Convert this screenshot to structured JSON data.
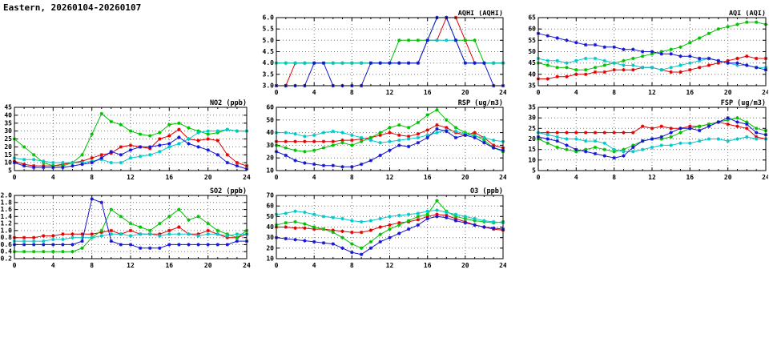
{
  "page_title": "Eastern, 20260104-20260107",
  "colors": {
    "red": "#e10000",
    "green": "#00c000",
    "blue": "#1414d2",
    "cyan": "#00c8c8"
  },
  "chart_data": [
    {
      "id": "aqhi",
      "type": "line",
      "title": "AQHI (AQHI)",
      "xlim": [
        0,
        24
      ],
      "xticks": [
        0,
        4,
        8,
        12,
        16,
        20,
        24
      ],
      "ylim": [
        3.0,
        6.0
      ],
      "yticks": [
        3.0,
        3.5,
        4.0,
        4.5,
        5.0,
        5.5,
        6.0
      ],
      "ytick_labels": [
        "3.0",
        "3.5",
        "4.0",
        "4.5",
        "5.0",
        "5.5",
        "6.0"
      ],
      "series": [
        {
          "name": "red",
          "color": "#e10000",
          "values": [
            3,
            3,
            4,
            4,
            4,
            4,
            4,
            4,
            4,
            4,
            4,
            4,
            4,
            4,
            4,
            4,
            5,
            5,
            6,
            6,
            5,
            4,
            4,
            4,
            4
          ]
        },
        {
          "name": "green",
          "color": "#00c000",
          "values": [
            4,
            4,
            4,
            4,
            4,
            4,
            4,
            4,
            4,
            4,
            4,
            4,
            4,
            5,
            5,
            5,
            5,
            6,
            6,
            5,
            5,
            5,
            4,
            4,
            4
          ]
        },
        {
          "name": "cyan",
          "color": "#00c8c8",
          "values": [
            4,
            4,
            4,
            4,
            4,
            4,
            4,
            4,
            4,
            4,
            4,
            4,
            4,
            4,
            4,
            4,
            5,
            5,
            5,
            5,
            4,
            4,
            4,
            4,
            4
          ]
        },
        {
          "name": "blue",
          "color": "#1414d2",
          "values": [
            3,
            3,
            3,
            3,
            4,
            4,
            3,
            3,
            3,
            3,
            4,
            4,
            4,
            4,
            4,
            4,
            5,
            6,
            6,
            5,
            4,
            4,
            4,
            3,
            3
          ]
        }
      ]
    },
    {
      "id": "aqi",
      "type": "line",
      "title": "AQI (AQI)",
      "xlim": [
        0,
        24
      ],
      "xticks": [
        0,
        4,
        8,
        12,
        16,
        20,
        24
      ],
      "ylim": [
        35,
        65
      ],
      "yticks": [
        35,
        40,
        45,
        50,
        55,
        60,
        65
      ],
      "ytick_labels": [
        "35",
        "40",
        "45",
        "50",
        "55",
        "60",
        "65"
      ],
      "series": [
        {
          "name": "red",
          "color": "#e10000",
          "values": [
            38,
            38,
            39,
            39,
            40,
            40,
            41,
            41,
            42,
            42,
            42,
            43,
            43,
            42,
            41,
            41,
            42,
            43,
            44,
            45,
            46,
            47,
            48,
            47,
            47
          ]
        },
        {
          "name": "green",
          "color": "#00c000",
          "values": [
            45,
            44,
            43,
            43,
            42,
            42,
            43,
            44,
            45,
            46,
            47,
            48,
            49,
            50,
            51,
            52,
            54,
            56,
            58,
            60,
            61,
            62,
            63,
            63,
            62
          ]
        },
        {
          "name": "cyan",
          "color": "#00c8c8",
          "values": [
            47,
            46,
            46,
            45,
            46,
            47,
            47,
            46,
            45,
            44,
            44,
            43,
            43,
            42,
            43,
            44,
            45,
            46,
            47,
            46,
            45,
            44,
            44,
            43,
            43
          ]
        },
        {
          "name": "blue",
          "color": "#1414d2",
          "values": [
            58,
            57,
            56,
            55,
            54,
            53,
            53,
            52,
            52,
            51,
            51,
            50,
            50,
            49,
            49,
            48,
            48,
            47,
            47,
            46,
            45,
            45,
            44,
            43,
            42
          ]
        }
      ]
    },
    {
      "id": "no2",
      "type": "line",
      "title": "NO2 (ppb)",
      "xlim": [
        0,
        24
      ],
      "xticks": [
        0,
        4,
        8,
        12,
        16,
        20,
        24
      ],
      "ylim": [
        5,
        45
      ],
      "yticks": [
        5,
        10,
        15,
        20,
        25,
        30,
        35,
        40,
        45
      ],
      "ytick_labels": [
        "5",
        "10",
        "15",
        "20",
        "25",
        "30",
        "35",
        "40",
        "45"
      ],
      "series": [
        {
          "name": "red",
          "color": "#e10000",
          "values": [
            11,
            9,
            8,
            8,
            8,
            9,
            10,
            11,
            13,
            15,
            16,
            20,
            21,
            20,
            19,
            25,
            27,
            31,
            25,
            24,
            25,
            24,
            15,
            10,
            8
          ]
        },
        {
          "name": "green",
          "color": "#00c000",
          "values": [
            25,
            20,
            15,
            10,
            8,
            8,
            10,
            15,
            28,
            41,
            36,
            34,
            30,
            28,
            27,
            29,
            34,
            35,
            32,
            30,
            28,
            29,
            31,
            30,
            30
          ]
        },
        {
          "name": "cyan",
          "color": "#00c8c8",
          "values": [
            13,
            12,
            12,
            11,
            10,
            10,
            10,
            10,
            11,
            12,
            10,
            10,
            13,
            14,
            15,
            17,
            20,
            22,
            25,
            29,
            30,
            30,
            31,
            30,
            30
          ]
        },
        {
          "name": "blue",
          "color": "#1414d2",
          "values": [
            10,
            8,
            7,
            7,
            7,
            7,
            8,
            9,
            10,
            13,
            17,
            15,
            18,
            20,
            20,
            21,
            22,
            26,
            22,
            20,
            18,
            15,
            10,
            8,
            6
          ]
        }
      ]
    },
    {
      "id": "rsp",
      "type": "line",
      "title": "RSP (ug/m3)",
      "xlim": [
        0,
        24
      ],
      "xticks": [
        0,
        4,
        8,
        12,
        16,
        20,
        24
      ],
      "ylim": [
        10,
        60
      ],
      "yticks": [
        10,
        20,
        30,
        40,
        50,
        60
      ],
      "ytick_labels": [
        "10",
        "20",
        "30",
        "40",
        "50",
        "60"
      ],
      "series": [
        {
          "name": "red",
          "color": "#e10000",
          "values": [
            33,
            33,
            33,
            33,
            33,
            33,
            33,
            34,
            34,
            35,
            36,
            38,
            40,
            38,
            37,
            39,
            42,
            46,
            44,
            40,
            38,
            40,
            36,
            30,
            28
          ]
        },
        {
          "name": "green",
          "color": "#00c000",
          "values": [
            30,
            28,
            26,
            25,
            26,
            28,
            30,
            32,
            30,
            33,
            36,
            40,
            44,
            46,
            44,
            48,
            54,
            58,
            50,
            44,
            40,
            38,
            34,
            28,
            25
          ]
        },
        {
          "name": "cyan",
          "color": "#00c8c8",
          "values": [
            40,
            40,
            39,
            37,
            38,
            40,
            41,
            40,
            38,
            36,
            34,
            32,
            33,
            34,
            35,
            36,
            38,
            40,
            42,
            41,
            39,
            37,
            36,
            34,
            33
          ]
        },
        {
          "name": "blue",
          "color": "#1414d2",
          "values": [
            25,
            22,
            18,
            16,
            15,
            14,
            14,
            13,
            13,
            15,
            18,
            22,
            26,
            30,
            29,
            32,
            36,
            43,
            41,
            36,
            38,
            36,
            32,
            28,
            26
          ]
        }
      ]
    },
    {
      "id": "fsp",
      "type": "line",
      "title": "FSP (ug/m3)",
      "xlim": [
        0,
        24
      ],
      "xticks": [
        0,
        4,
        8,
        12,
        16,
        20,
        24
      ],
      "ylim": [
        5,
        35
      ],
      "yticks": [
        5,
        10,
        15,
        20,
        25,
        30,
        35
      ],
      "ytick_labels": [
        "5",
        "10",
        "15",
        "20",
        "25",
        "30",
        "35"
      ],
      "series": [
        {
          "name": "red",
          "color": "#e10000",
          "values": [
            23,
            23,
            23,
            23,
            23,
            23,
            23,
            23,
            23,
            23,
            23,
            26,
            25,
            26,
            25,
            25,
            26,
            26,
            27,
            28,
            27,
            26,
            25,
            21,
            20
          ]
        },
        {
          "name": "green",
          "color": "#00c000",
          "values": [
            20,
            18,
            16,
            15,
            14,
            15,
            16,
            15,
            14,
            15,
            17,
            19,
            20,
            20,
            21,
            23,
            25,
            26,
            27,
            28,
            29,
            30,
            28,
            25,
            24
          ]
        },
        {
          "name": "cyan",
          "color": "#00c8c8",
          "values": [
            23,
            22,
            21,
            20,
            20,
            19,
            19,
            18,
            15,
            14,
            14,
            15,
            16,
            17,
            17,
            18,
            18,
            19,
            20,
            20,
            19,
            20,
            21,
            20,
            20
          ]
        },
        {
          "name": "blue",
          "color": "#1414d2",
          "values": [
            21,
            20,
            19,
            17,
            15,
            14,
            13,
            12,
            11,
            12,
            16,
            19,
            20,
            21,
            23,
            25,
            25,
            24,
            26,
            28,
            30,
            28,
            27,
            23,
            22
          ]
        }
      ]
    },
    {
      "id": "so2",
      "type": "line",
      "title": "SO2 (ppb)",
      "xlim": [
        0,
        24
      ],
      "xticks": [
        0,
        4,
        8,
        12,
        16,
        20,
        24
      ],
      "ylim": [
        0.2,
        2.0
      ],
      "yticks": [
        0.2,
        0.4,
        0.6,
        0.8,
        1.0,
        1.2,
        1.4,
        1.6,
        1.8,
        2.0
      ],
      "ytick_labels": [
        "0.2",
        "0.4",
        "0.6",
        "0.8",
        "1.0",
        "1.2",
        "1.4",
        "1.6",
        "1.8",
        "2.0"
      ],
      "series": [
        {
          "name": "red",
          "color": "#e10000",
          "values": [
            0.8,
            0.8,
            0.8,
            0.85,
            0.85,
            0.9,
            0.9,
            0.9,
            0.9,
            0.95,
            1.0,
            0.9,
            1.0,
            0.9,
            0.9,
            0.9,
            1.0,
            1.1,
            0.9,
            0.9,
            1.0,
            0.9,
            0.8,
            0.8,
            0.9
          ]
        },
        {
          "name": "green",
          "color": "#00c000",
          "values": [
            0.4,
            0.4,
            0.4,
            0.4,
            0.4,
            0.4,
            0.4,
            0.5,
            0.8,
            1.0,
            1.6,
            1.4,
            1.2,
            1.1,
            1.0,
            1.2,
            1.4,
            1.6,
            1.3,
            1.4,
            1.2,
            1.0,
            0.9,
            0.8,
            1.0
          ]
        },
        {
          "name": "cyan",
          "color": "#00c8c8",
          "values": [
            0.7,
            0.7,
            0.7,
            0.7,
            0.75,
            0.75,
            0.8,
            0.8,
            0.8,
            0.85,
            0.9,
            0.9,
            0.85,
            0.9,
            0.9,
            0.85,
            0.9,
            0.9,
            0.9,
            0.85,
            0.9,
            0.9,
            0.85,
            0.9,
            0.9
          ]
        },
        {
          "name": "blue",
          "color": "#1414d2",
          "values": [
            0.6,
            0.6,
            0.6,
            0.6,
            0.6,
            0.6,
            0.6,
            0.7,
            1.9,
            1.8,
            0.7,
            0.6,
            0.6,
            0.5,
            0.5,
            0.5,
            0.6,
            0.6,
            0.6,
            0.6,
            0.6,
            0.6,
            0.6,
            0.7,
            0.7
          ]
        }
      ]
    },
    {
      "id": "o3",
      "type": "line",
      "title": "O3 (ppb)",
      "xlim": [
        0,
        24
      ],
      "xticks": [
        0,
        4,
        8,
        12,
        16,
        20,
        24
      ],
      "ylim": [
        10,
        70
      ],
      "yticks": [
        10,
        20,
        30,
        40,
        50,
        60,
        70
      ],
      "ytick_labels": [
        "10",
        "20",
        "30",
        "40",
        "50",
        "60",
        "70"
      ],
      "series": [
        {
          "name": "red",
          "color": "#e10000",
          "values": [
            40,
            40,
            39,
            39,
            38,
            38,
            37,
            36,
            35,
            35,
            37,
            40,
            42,
            44,
            45,
            47,
            50,
            52,
            51,
            48,
            45,
            42,
            40,
            38,
            37
          ]
        },
        {
          "name": "green",
          "color": "#00c000",
          "values": [
            42,
            44,
            45,
            43,
            40,
            38,
            35,
            30,
            24,
            20,
            26,
            33,
            38,
            42,
            46,
            50,
            52,
            65,
            55,
            50,
            48,
            46,
            45,
            44,
            45
          ]
        },
        {
          "name": "cyan",
          "color": "#00c8c8",
          "values": [
            52,
            53,
            55,
            54,
            52,
            50,
            49,
            48,
            46,
            45,
            46,
            48,
            50,
            51,
            52,
            53,
            55,
            56,
            54,
            52,
            50,
            48,
            46,
            45,
            44
          ]
        },
        {
          "name": "blue",
          "color": "#1414d2",
          "values": [
            30,
            29,
            28,
            27,
            26,
            25,
            24,
            20,
            16,
            14,
            20,
            26,
            30,
            34,
            38,
            42,
            48,
            50,
            49,
            46,
            44,
            42,
            40,
            39,
            38
          ]
        }
      ]
    }
  ]
}
